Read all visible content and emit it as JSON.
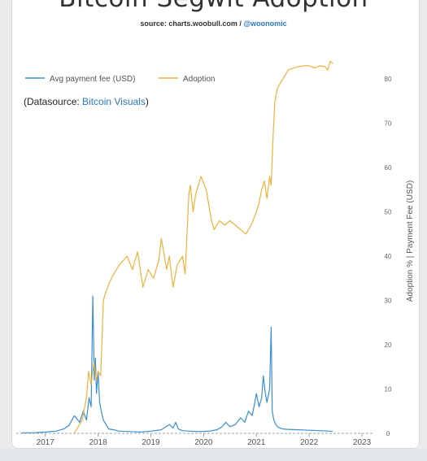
{
  "header": {
    "title": "Bitcoin Segwit Adoption",
    "source_prefix": "source: charts.woobull.com / ",
    "source_handle": "@woonomic"
  },
  "datasource": {
    "prefix": "(Datasource: ",
    "link": "Bitcoin Visuals",
    "suffix": ")"
  },
  "colors": {
    "fee": "#3a8fd3",
    "adoption": "#f0b13b",
    "link": "#2b78c5"
  },
  "chart_data": {
    "type": "line",
    "series": [
      {
        "name": "Avg payment fee (USD)",
        "color": "#3a8fd3",
        "axis": "right",
        "x": [
          2016.55,
          2016.8,
          2017.0,
          2017.2,
          2017.35,
          2017.45,
          2017.55,
          2017.65,
          2017.72,
          2017.78,
          2017.83,
          2017.87,
          2017.9,
          2017.93,
          2017.95,
          2017.97,
          2018.0,
          2018.03,
          2018.06,
          2018.1,
          2018.15,
          2018.2,
          2018.3,
          2018.4,
          2018.6,
          2018.8,
          2019.0,
          2019.2,
          2019.35,
          2019.42,
          2019.47,
          2019.52,
          2019.6,
          2019.75,
          2019.9,
          2020.1,
          2020.25,
          2020.35,
          2020.42,
          2020.5,
          2020.6,
          2020.7,
          2020.78,
          2020.85,
          2020.92,
          2020.97,
          2021.0,
          2021.05,
          2021.1,
          2021.13,
          2021.17,
          2021.2,
          2021.25,
          2021.28,
          2021.3,
          2021.33,
          2021.37,
          2021.4,
          2021.45,
          2021.5,
          2021.6,
          2021.8,
          2022.0,
          2022.2,
          2022.4,
          2022.45
        ],
        "y": [
          0.1,
          0.15,
          0.3,
          0.5,
          1.0,
          1.8,
          4.0,
          2.5,
          5.0,
          3.0,
          8.0,
          6.0,
          31.0,
          12.0,
          17.0,
          9.0,
          14.0,
          7.0,
          5.0,
          3.0,
          2.0,
          1.0,
          0.8,
          0.5,
          0.4,
          0.3,
          0.5,
          0.8,
          2.0,
          1.2,
          2.5,
          1.0,
          0.6,
          0.5,
          0.4,
          0.5,
          0.8,
          1.5,
          2.5,
          1.5,
          2.0,
          3.5,
          2.5,
          5.0,
          4.0,
          7.0,
          9.0,
          6.0,
          8.0,
          13.0,
          9.0,
          7.0,
          10.0,
          24.0,
          5.0,
          3.0,
          2.0,
          1.5,
          1.2,
          1.0,
          0.9,
          0.8,
          0.7,
          0.6,
          0.5,
          0.4
        ]
      },
      {
        "name": "Adoption",
        "color": "#f0b13b",
        "axis": "right",
        "x": [
          2017.55,
          2017.7,
          2017.78,
          2017.82,
          2017.87,
          2017.92,
          2017.97,
          2018.0,
          2018.05,
          2018.1,
          2018.15,
          2018.25,
          2018.4,
          2018.55,
          2018.65,
          2018.75,
          2018.85,
          2018.95,
          2019.05,
          2019.15,
          2019.2,
          2019.3,
          2019.35,
          2019.42,
          2019.5,
          2019.6,
          2019.65,
          2019.72,
          2019.75,
          2019.8,
          2019.85,
          2019.95,
          2020.05,
          2020.15,
          2020.2,
          2020.3,
          2020.4,
          2020.5,
          2020.6,
          2020.7,
          2020.8,
          2020.9,
          2021.0,
          2021.05,
          2021.1,
          2021.15,
          2021.2,
          2021.25,
          2021.28,
          2021.32,
          2021.35,
          2021.4,
          2021.5,
          2021.6,
          2021.7,
          2021.8,
          2021.9,
          2022.0,
          2022.1,
          2022.2,
          2022.3,
          2022.35,
          2022.4,
          2022.45
        ],
        "y": [
          0,
          3,
          8,
          14,
          11,
          16,
          12,
          14,
          13,
          30,
          32,
          35,
          38,
          40,
          37,
          41,
          33,
          37,
          35,
          39,
          44,
          37,
          40,
          33,
          38,
          40,
          36,
          54,
          56,
          50,
          54,
          58,
          55,
          48,
          46,
          48,
          47,
          48,
          47,
          46,
          45,
          47,
          50,
          52,
          55,
          57,
          53,
          58,
          56,
          68,
          75,
          78,
          80,
          82,
          82.5,
          82.8,
          83,
          83,
          82.5,
          83,
          82.8,
          82,
          84,
          83.5
        ],
        "scale": "percent"
      }
    ],
    "title": "Bitcoin Segwit Adoption",
    "subtitle": "source: charts.woobull.com / @woonomic",
    "xlabel": "",
    "ylabel": "Adoption % | Payment Fee (USD)",
    "x_ticks": [
      "2017",
      "2018",
      "2019",
      "2020",
      "2021",
      "2022",
      "2023"
    ],
    "y_ticks": [
      "0",
      "10",
      "20",
      "30",
      "40",
      "50",
      "60",
      "70",
      "80"
    ],
    "xlim": [
      2016.45,
      2023.2
    ],
    "ylim": [
      0,
      85
    ],
    "legend_position": "top-left",
    "grid": false
  }
}
